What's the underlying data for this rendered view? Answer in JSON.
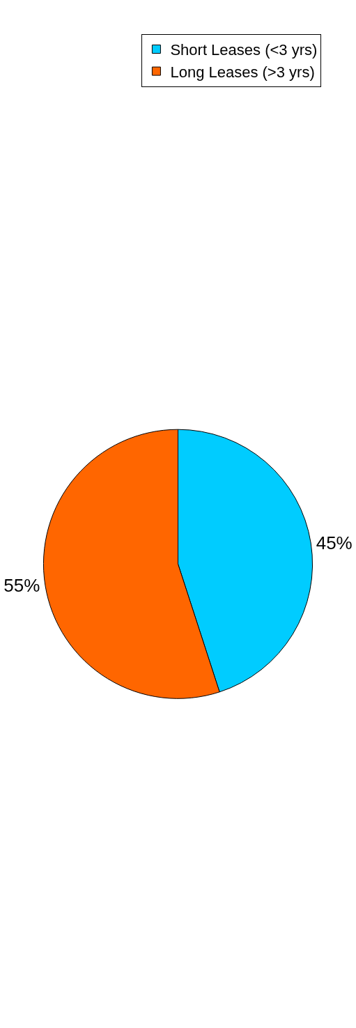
{
  "chart_data": {
    "type": "pie",
    "categories": [
      "Short Leases (<3 yrs)",
      "Long Leases (>3 yrs)"
    ],
    "values": [
      45,
      55
    ],
    "colors": [
      "#00ccff",
      "#ff6600"
    ],
    "value_labels": [
      "45%",
      "55%"
    ],
    "legend": "top right"
  }
}
